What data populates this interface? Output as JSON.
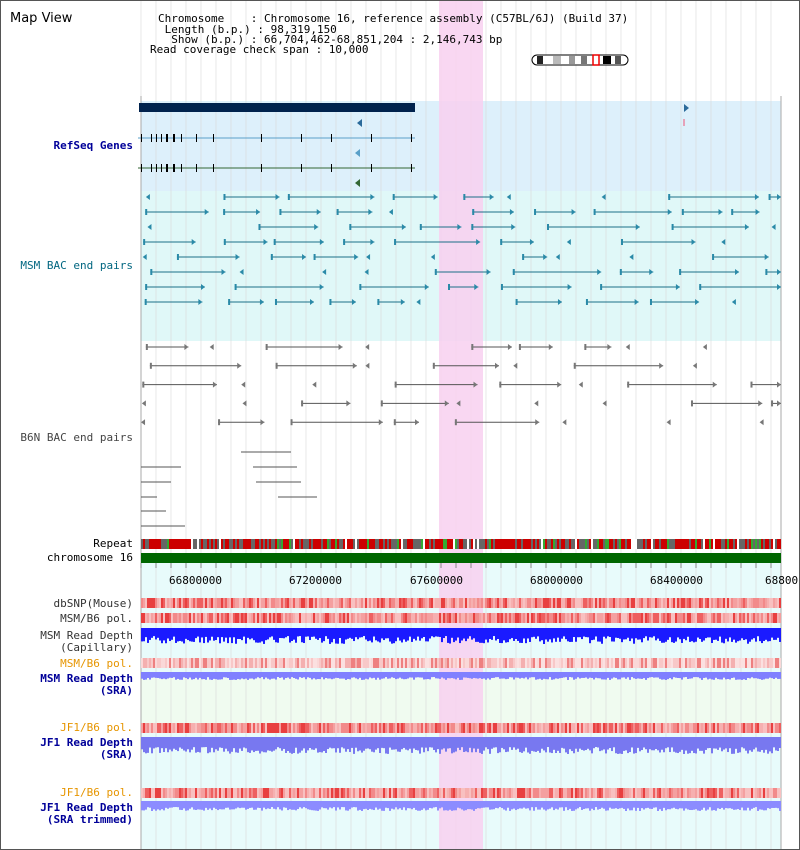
{
  "header": {
    "title": "Map View",
    "info_lines": [
      "Chromosome    : Chromosome 16, reference assembly (C57BL/6J) (Build 37)",
      " Length (b.p.) : 98,319,150",
      "  Show (b.p.) : 66,704,462-68,851,204 : 2,146,743 bp",
      "Read coverage check span : 10,000"
    ]
  },
  "tracks": {
    "refseq": "RefSeq Genes",
    "msm_bac": "MSM BAC end pairs",
    "b6n_bac": "B6N BAC end pairs",
    "repeat": "Repeat",
    "chromosome": "chromosome 16",
    "dbsnp": "dbSNP(Mouse)",
    "msm_b6_pol": "MSM/B6 pol.",
    "msm_read_depth_cap_1": "MSM Read Depth",
    "msm_read_depth_cap_2": "(Capillary)",
    "msm_b6_pol_2": "MSM/B6 pol.",
    "msm_read_depth_sra_1": "MSM Read Depth",
    "msm_read_depth_sra_2": "(SRA)",
    "jf1_b6_pol": "JF1/B6 pol.",
    "jf1_read_depth_sra_1": "JF1 Read Depth",
    "jf1_read_depth_sra_2": "(SRA)",
    "jf1_b6_pol_2": "JF1/B6 pol.",
    "jf1_read_depth_trim_1": "JF1 Read Depth",
    "jf1_read_depth_trim_2": "(SRA trimmed)"
  },
  "axis": {
    "ticks": [
      "66800000",
      "67200000",
      "67600000",
      "68000000",
      "68400000",
      "68800"
    ]
  },
  "colors": {
    "navy_label": "#000099",
    "teal_label": "#006680",
    "orange_label": "#e69500",
    "highlight": "#f8d0f0",
    "refseq_bg": "#ddf0fb",
    "msm_bg": "#e0f8f8",
    "chromosome": "#006600",
    "capillary_depth": "#1a1aff",
    "sra_depth": "#8080ff"
  }
}
